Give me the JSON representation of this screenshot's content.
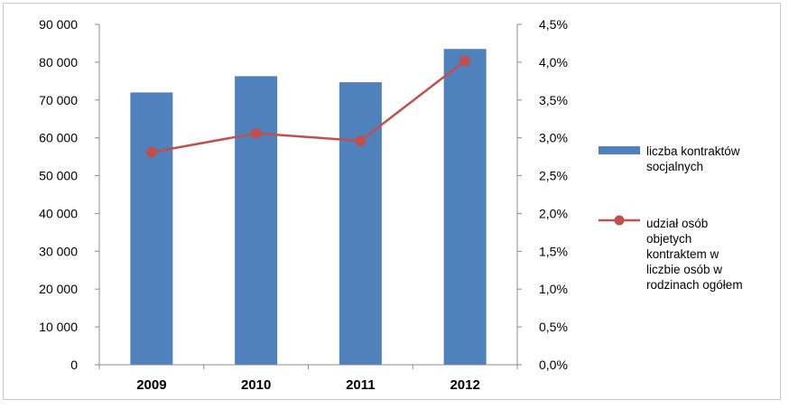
{
  "chart_data": {
    "type": "bar",
    "categories": [
      "2009",
      "2010",
      "2011",
      "2012"
    ],
    "series": [
      {
        "name": "liczba kontraktów socjalnych",
        "kind": "bar",
        "axis": "left",
        "color": "#4f81bd",
        "values": [
          72000,
          76300,
          74700,
          83500
        ]
      },
      {
        "name": "udział osób objetych kontraktem w liczbie osób w rodzinach ogółem",
        "kind": "line",
        "axis": "right",
        "color": "#c0504d",
        "values": [
          0.0281,
          0.0306,
          0.0296,
          0.0402
        ]
      }
    ],
    "left_axis": {
      "ylim": [
        0,
        90000
      ],
      "ticks": [
        0,
        10000,
        20000,
        30000,
        40000,
        50000,
        60000,
        70000,
        80000,
        90000
      ],
      "tick_labels": [
        "0",
        "10 000",
        "20 000",
        "30 000",
        "40 000",
        "50 000",
        "60 000",
        "70 000",
        "80 000",
        "90 000"
      ]
    },
    "right_axis": {
      "ylim": [
        0,
        0.045
      ],
      "ticks": [
        0,
        0.005,
        0.01,
        0.015,
        0.02,
        0.025,
        0.03,
        0.035,
        0.04,
        0.045
      ],
      "tick_labels": [
        "0,0%",
        "0,5%",
        "1,0%",
        "1,5%",
        "2,0%",
        "2,5%",
        "3,0%",
        "3,5%",
        "4,0%",
        "4,5%"
      ]
    },
    "legend": {
      "placement": "right",
      "entries": [
        {
          "lines": [
            "liczba kontraktów",
            "socjalnych"
          ]
        },
        {
          "lines": [
            "udział osób",
            "objetych",
            "kontraktem w",
            "liczbie osób w",
            "rodzinach ogółem"
          ]
        }
      ]
    },
    "grid": false,
    "title": "",
    "xlabel": "",
    "ylabel": ""
  }
}
